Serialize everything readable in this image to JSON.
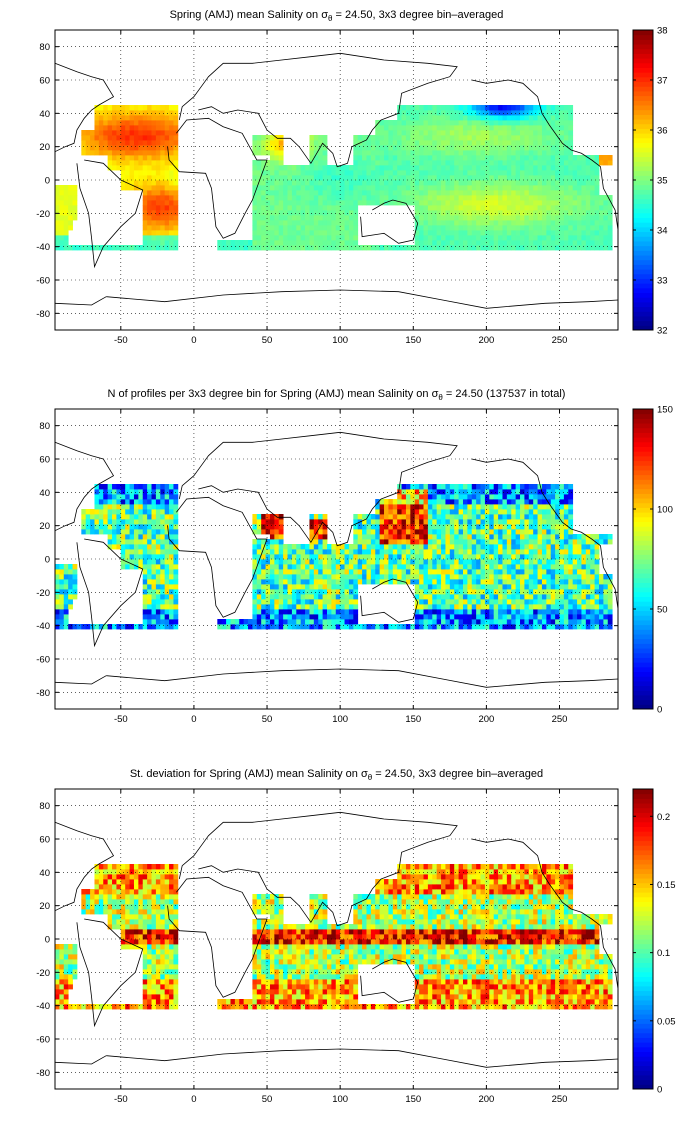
{
  "chart_data": [
    {
      "type": "heatmap",
      "title": "Spring (AMJ) mean Salinity on σθ = 24.50, 3x3 degree bin–averaged",
      "title_parts": {
        "before": "Spring (AMJ) mean Salinity on σ",
        "sub": "θ",
        "after": " = 24.50, 3x3 degree bin–averaged"
      },
      "xlim": [
        -95,
        290
      ],
      "ylim": [
        -90,
        90
      ],
      "xticks": [
        -50,
        0,
        50,
        100,
        150,
        200,
        250
      ],
      "yticks": [
        80,
        60,
        40,
        20,
        0,
        -20,
        -40,
        -60,
        -80
      ],
      "grid": "dotted",
      "colorbar": {
        "min": 32,
        "max": 38,
        "ticks": [
          38,
          37,
          36,
          35,
          34,
          33,
          32
        ],
        "colormap": "jet",
        "position": "right"
      },
      "field": "mean"
    },
    {
      "type": "heatmap",
      "title": "N of profiles per 3x3 degree bin for Spring (AMJ) mean Salinity on σθ = 24.50 (137537 in total)",
      "title_parts": {
        "before": "N of profiles per 3x3 degree bin for Spring (AMJ) mean Salinity on σ",
        "sub": "θ",
        "after": " = 24.50 (137537 in total)"
      },
      "xlim": [
        -95,
        290
      ],
      "ylim": [
        -90,
        90
      ],
      "xticks": [
        -50,
        0,
        50,
        100,
        150,
        200,
        250
      ],
      "yticks": [
        80,
        60,
        40,
        20,
        0,
        -20,
        -40,
        -60,
        -80
      ],
      "grid": "dotted",
      "colorbar": {
        "min": 0,
        "max": 150,
        "ticks": [
          150,
          100,
          50,
          0
        ],
        "colormap": "jet",
        "position": "right"
      },
      "field": "count"
    },
    {
      "type": "heatmap",
      "title": "St. deviation for Spring (AMJ) mean Salinity on σθ = 24.50, 3x3 degree bin–averaged",
      "title_parts": {
        "before": "St. deviation for Spring (AMJ) mean Salinity on σ",
        "sub": "θ",
        "after": " = 24.50, 3x3 degree bin–averaged"
      },
      "xlim": [
        -95,
        290
      ],
      "ylim": [
        -90,
        90
      ],
      "xticks": [
        -50,
        0,
        50,
        100,
        150,
        200,
        250
      ],
      "yticks": [
        80,
        60,
        40,
        20,
        0,
        -20,
        -40,
        -60,
        -80
      ],
      "grid": "dotted",
      "colorbar": {
        "min": 0,
        "max": 0.22,
        "ticks": [
          0.2,
          0.15,
          0.1,
          0.05,
          0
        ],
        "colormap": "jet",
        "position": "right"
      },
      "field": "std"
    }
  ]
}
